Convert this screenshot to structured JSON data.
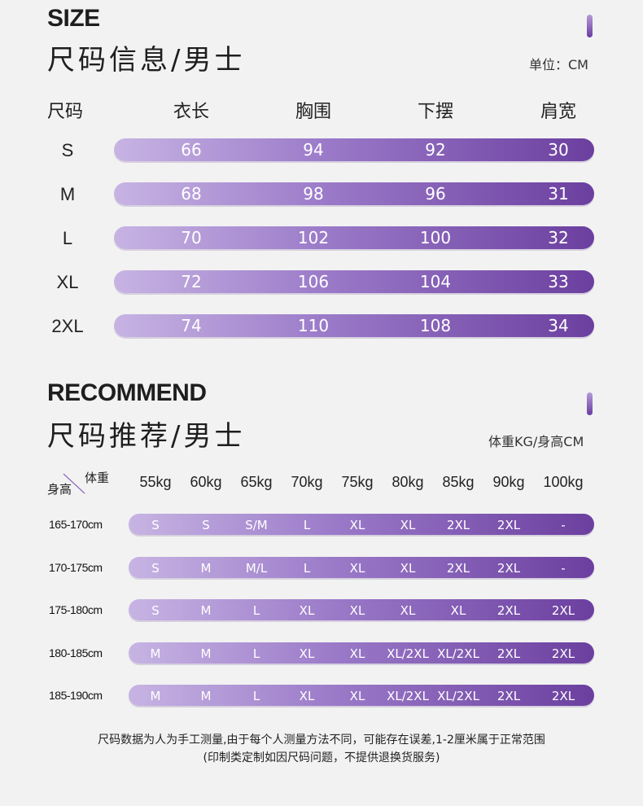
{
  "size": {
    "en_title": "SIZE",
    "cn_title": "尺码信息/男士",
    "unit": "单位：CM",
    "row_header": "尺码",
    "columns": [
      "衣长",
      "胸围",
      "下摆",
      "肩宽"
    ],
    "rows": [
      {
        "label": "S",
        "values": [
          "66",
          "94",
          "92",
          "30"
        ]
      },
      {
        "label": "M",
        "values": [
          "68",
          "98",
          "96",
          "31"
        ]
      },
      {
        "label": "L",
        "values": [
          "70",
          "102",
          "100",
          "32"
        ]
      },
      {
        "label": "XL",
        "values": [
          "72",
          "106",
          "104",
          "33"
        ]
      },
      {
        "label": "2XL",
        "values": [
          "74",
          "110",
          "108",
          "34"
        ]
      }
    ]
  },
  "recommend": {
    "en_title": "RECOMMEND",
    "cn_title": "尺码推荐/男士",
    "unit": "体重KG/身高CM",
    "corner_weight": "体重",
    "corner_height": "身高",
    "weights": [
      "55kg",
      "60kg",
      "65kg",
      "70kg",
      "75kg",
      "80kg",
      "85kg",
      "90kg",
      "100kg"
    ],
    "rows": [
      {
        "label": "165-170cm",
        "values": [
          "S",
          "S",
          "S/M",
          "L",
          "XL",
          "XL",
          "2XL",
          "2XL",
          "-"
        ]
      },
      {
        "label": "170-175cm",
        "values": [
          "S",
          "M",
          "M/L",
          "L",
          "XL",
          "XL",
          "2XL",
          "2XL",
          "-"
        ]
      },
      {
        "label": "175-180cm",
        "values": [
          "S",
          "M",
          "L",
          "XL",
          "XL",
          "XL",
          "XL",
          "2XL",
          "2XL"
        ]
      },
      {
        "label": "180-185cm",
        "values": [
          "M",
          "M",
          "L",
          "XL",
          "XL",
          "XL/2XL",
          "XL/2XL",
          "2XL",
          "2XL"
        ]
      },
      {
        "label": "185-190cm",
        "values": [
          "M",
          "M",
          "L",
          "XL",
          "XL",
          "XL/2XL",
          "XL/2XL",
          "2XL",
          "2XL"
        ]
      }
    ]
  },
  "note": {
    "line1": "尺码数据为人为手工测量,由于每个人测量方法不同，可能存在误差,1-2厘米属于正常范围",
    "line2": "(印制类定制如因尺码问题，不提供退换货服务)"
  },
  "colors": {
    "bar_start": "#c7b4e3",
    "bar_end": "#6b3f9f",
    "background": "#f2f2f2"
  }
}
